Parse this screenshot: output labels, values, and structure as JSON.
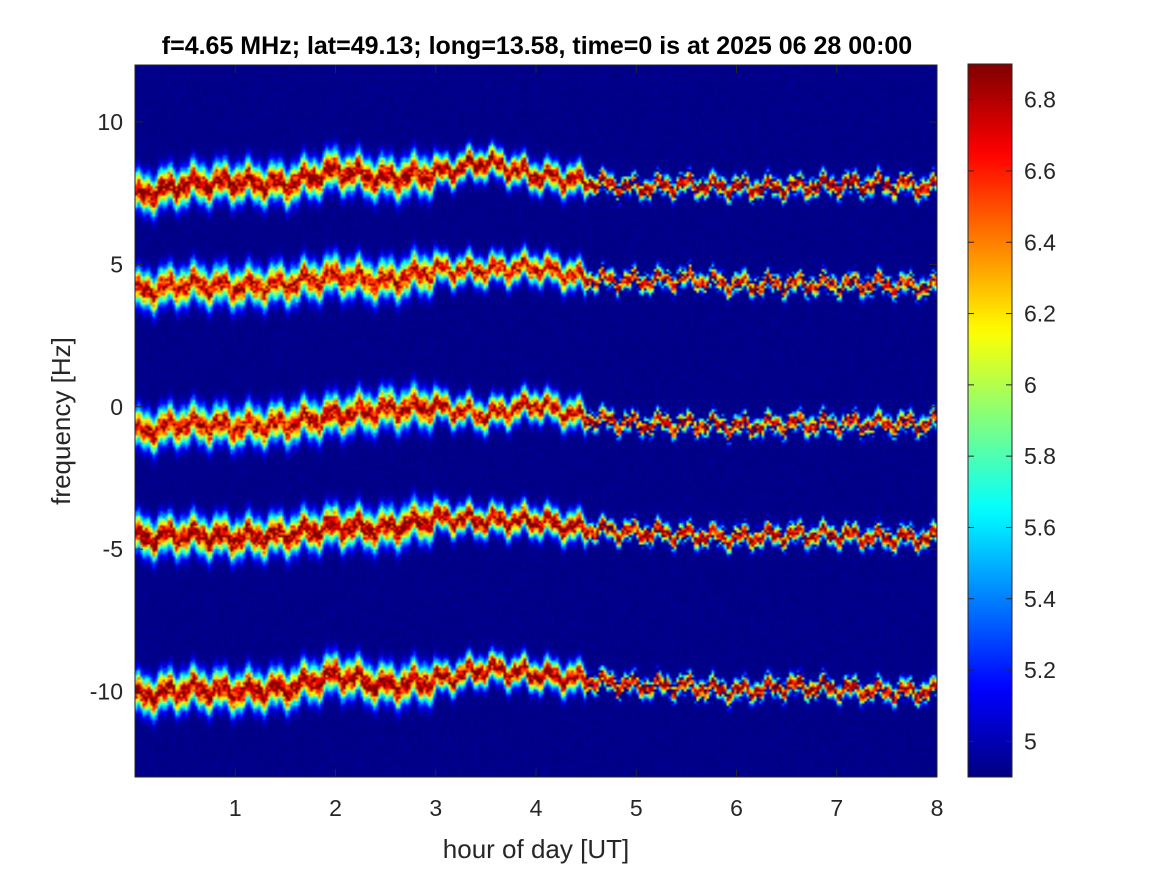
{
  "chart_data": {
    "type": "heatmap",
    "title": "f=4.65 MHz;  lat=49.13; long=13.58, time=0 is at 2025 06 28 00:00",
    "xlabel": "hour of day [UT]",
    "ylabel": "frequency [Hz]",
    "xlim": [
      0,
      8
    ],
    "ylim": [
      -13,
      12
    ],
    "xticks": [
      1,
      2,
      3,
      4,
      5,
      6,
      7,
      8
    ],
    "xtick_labels": [
      "1",
      "2",
      "3",
      "4",
      "5",
      "6",
      "7",
      "8"
    ],
    "yticks": [
      10,
      5,
      0,
      -5,
      -10
    ],
    "ytick_labels": [
      "10",
      "5",
      "0",
      "-5",
      "-10"
    ],
    "colorbar": {
      "colormap": "jet",
      "clim": [
        4.9,
        6.9
      ],
      "ticks": [
        5,
        5.2,
        5.4,
        5.6,
        5.8,
        6,
        6.2,
        6.4,
        6.6,
        6.8
      ],
      "tick_labels": [
        "5",
        "5.2",
        "5.4",
        "5.6",
        "5.8",
        "6",
        "6.2",
        "6.4",
        "6.6",
        "6.8"
      ]
    },
    "background_value": 4.9,
    "grid": false,
    "bands": [
      {
        "trace": [
          [
            0,
            7.4
          ],
          [
            0.5,
            7.8
          ],
          [
            1,
            7.9
          ],
          [
            1.5,
            7.8
          ],
          [
            2,
            8.3
          ],
          [
            2.5,
            8.0
          ],
          [
            3,
            8.2
          ],
          [
            3.5,
            8.6
          ],
          [
            4,
            8.1
          ],
          [
            4.5,
            7.9
          ],
          [
            5,
            7.7
          ],
          [
            5.5,
            7.8
          ],
          [
            6,
            7.7
          ],
          [
            6.5,
            7.7
          ],
          [
            7,
            7.8
          ],
          [
            7.5,
            7.8
          ],
          [
            8,
            7.7
          ]
        ],
        "peak": 6.9,
        "fade_start_hour": 4.5,
        "fade_min": 0.55
      },
      {
        "trace": [
          [
            0,
            4.0
          ],
          [
            0.5,
            4.3
          ],
          [
            1,
            4.2
          ],
          [
            1.5,
            4.3
          ],
          [
            2,
            4.6
          ],
          [
            2.5,
            4.4
          ],
          [
            3,
            4.8
          ],
          [
            3.5,
            4.8
          ],
          [
            4,
            4.9
          ],
          [
            4.5,
            4.5
          ],
          [
            5,
            4.4
          ],
          [
            5.5,
            4.5
          ],
          [
            6,
            4.3
          ],
          [
            6.5,
            4.3
          ],
          [
            7,
            4.3
          ],
          [
            7.5,
            4.3
          ],
          [
            8,
            4.2
          ]
        ],
        "peak": 6.75,
        "fade_start_hour": 4.5,
        "fade_min": 0.5
      },
      {
        "trace": [
          [
            0,
            -0.9
          ],
          [
            0.5,
            -0.6
          ],
          [
            1,
            -0.7
          ],
          [
            1.5,
            -0.6
          ],
          [
            2,
            -0.3
          ],
          [
            2.5,
            -0.1
          ],
          [
            3,
            0.0
          ],
          [
            3.5,
            -0.3
          ],
          [
            4,
            0.1
          ],
          [
            4.5,
            -0.4
          ],
          [
            5,
            -0.6
          ],
          [
            5.5,
            -0.6
          ],
          [
            6,
            -0.7
          ],
          [
            6.5,
            -0.6
          ],
          [
            7,
            -0.6
          ],
          [
            7.5,
            -0.6
          ],
          [
            8,
            -0.6
          ]
        ],
        "peak": 6.8,
        "fade_start_hour": 4.5,
        "fade_min": 0.5
      },
      {
        "trace": [
          [
            0,
            -4.6
          ],
          [
            0.5,
            -4.5
          ],
          [
            1,
            -4.6
          ],
          [
            1.5,
            -4.5
          ],
          [
            2,
            -4.2
          ],
          [
            2.5,
            -4.3
          ],
          [
            3,
            -3.9
          ],
          [
            3.5,
            -4.0
          ],
          [
            4,
            -4.0
          ],
          [
            4.5,
            -4.3
          ],
          [
            5,
            -4.4
          ],
          [
            5.5,
            -4.5
          ],
          [
            6,
            -4.6
          ],
          [
            6.5,
            -4.5
          ],
          [
            7,
            -4.5
          ],
          [
            7.5,
            -4.6
          ],
          [
            8,
            -4.6
          ]
        ],
        "peak": 6.9,
        "fade_start_hour": 4.5,
        "fade_min": 0.6
      },
      {
        "trace": [
          [
            0,
            -10.2
          ],
          [
            0.5,
            -9.9
          ],
          [
            1,
            -10.0
          ],
          [
            1.5,
            -9.9
          ],
          [
            2,
            -9.4
          ],
          [
            2.5,
            -9.8
          ],
          [
            3,
            -9.6
          ],
          [
            3.5,
            -9.2
          ],
          [
            4,
            -9.4
          ],
          [
            4.5,
            -9.6
          ],
          [
            5,
            -9.8
          ],
          [
            5.5,
            -9.8
          ],
          [
            6,
            -10.0
          ],
          [
            6.5,
            -9.8
          ],
          [
            7,
            -9.9
          ],
          [
            7.5,
            -10.0
          ],
          [
            8,
            -10.0
          ]
        ],
        "peak": 6.9,
        "fade_start_hour": 4.5,
        "fade_min": 0.55
      }
    ]
  }
}
